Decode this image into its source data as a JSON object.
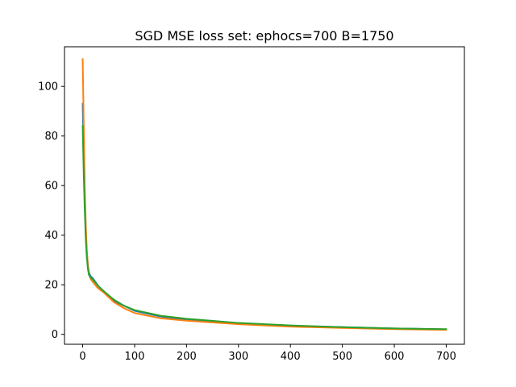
{
  "chart_data": {
    "type": "line",
    "title": "SGD MSE loss set: ephocs=700 B=1750",
    "xlabel": "",
    "ylabel": "",
    "xlim": [
      -35,
      735
    ],
    "ylim": [
      -4,
      116
    ],
    "xticks": [
      0,
      100,
      200,
      300,
      400,
      500,
      600,
      700
    ],
    "yticks": [
      0,
      20,
      40,
      60,
      80,
      100
    ],
    "grid": false,
    "legend": "none",
    "series": [
      {
        "color": "#1f77b4",
        "x": [
          0,
          2,
          4,
          6,
          8,
          10,
          12,
          15,
          20,
          30,
          40,
          60,
          80,
          100,
          150,
          200,
          300,
          400,
          500,
          600,
          700
        ],
        "y": [
          93,
          72,
          55,
          42,
          33,
          28,
          25,
          23.5,
          22.5,
          19.5,
          17.5,
          13.5,
          11.5,
          9.5,
          7.2,
          6.0,
          4.3,
          3.4,
          2.9,
          2.4,
          2.0
        ]
      },
      {
        "color": "#ff7f0e",
        "x": [
          0,
          2,
          4,
          6,
          8,
          10,
          12,
          15,
          20,
          30,
          40,
          60,
          80,
          100,
          150,
          200,
          300,
          400,
          500,
          600,
          700
        ],
        "y": [
          111,
          85,
          60,
          44,
          34,
          28,
          24.5,
          22.5,
          21,
          18.5,
          17,
          13,
          10.5,
          8.6,
          6.5,
          5.5,
          4.1,
          3.1,
          2.6,
          2.1,
          1.8
        ]
      },
      {
        "color": "#2ca02c",
        "x": [
          0,
          2,
          4,
          6,
          8,
          10,
          12,
          15,
          20,
          30,
          40,
          60,
          80,
          100,
          150,
          200,
          300,
          400,
          500,
          600,
          700
        ],
        "y": [
          84,
          65,
          50,
          38,
          31,
          26.5,
          24,
          23,
          22,
          19.5,
          17.5,
          14,
          11.5,
          9.8,
          7.5,
          6.3,
          4.6,
          3.6,
          2.9,
          2.4,
          2.1
        ]
      }
    ]
  }
}
